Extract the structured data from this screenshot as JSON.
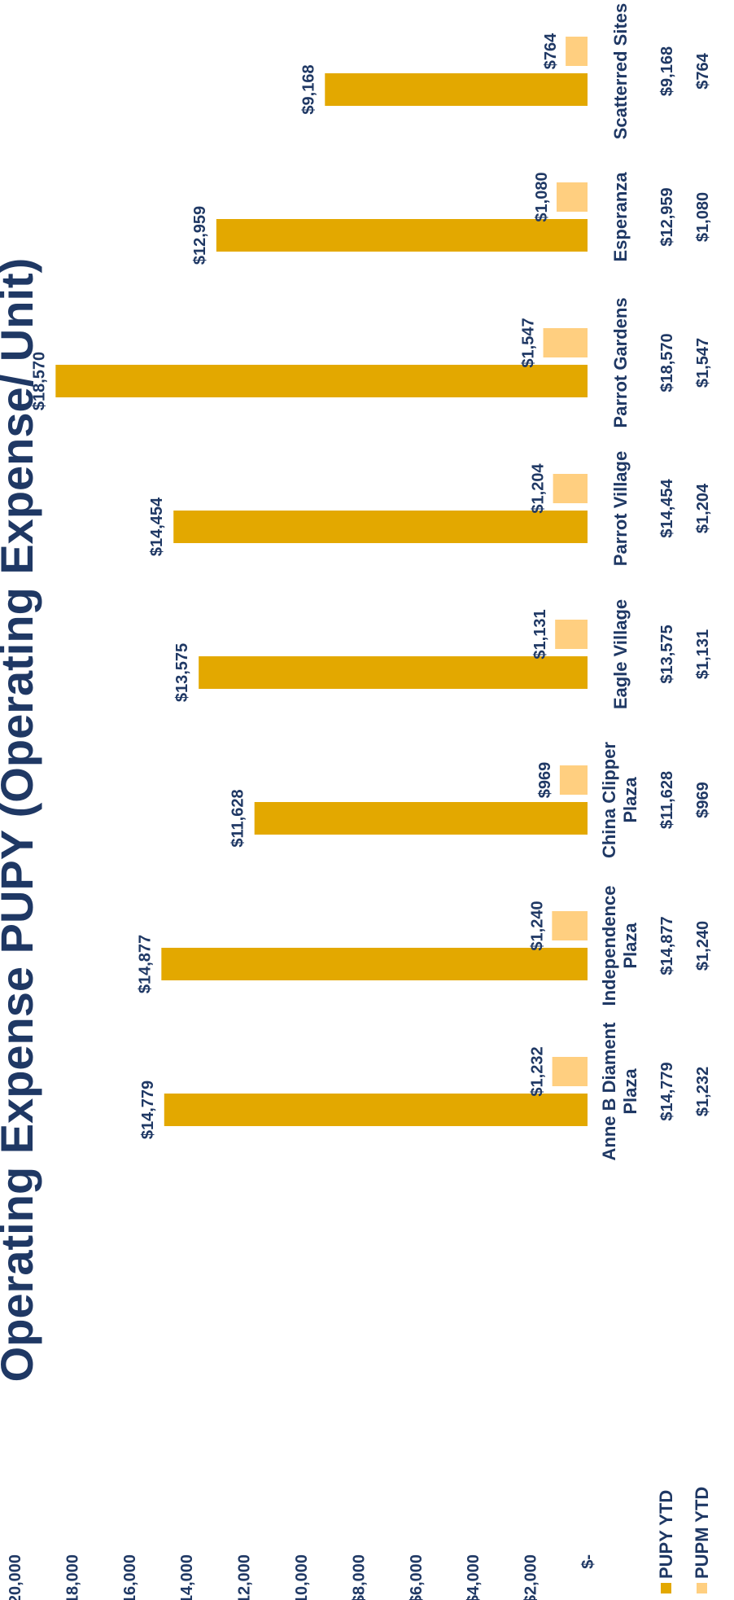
{
  "chart_data": {
    "type": "bar",
    "title": "Operating Expense PUPY (Operating Expense/ Unit)",
    "categories": [
      [
        "Anne B Diament",
        "Plaza"
      ],
      [
        "Independence",
        "Plaza"
      ],
      [
        "China Clipper",
        "Plaza"
      ],
      [
        "Eagle Village"
      ],
      [
        "Parrot Village"
      ],
      [
        "Parrot Gardens"
      ],
      [
        "Esperanza"
      ],
      [
        "Scatterred Sites"
      ]
    ],
    "series": [
      {
        "name": "PUPY YTD",
        "color": "#e3a800",
        "values": [
          14779,
          14877,
          11628,
          13575,
          14454,
          18570,
          12959,
          9168
        ],
        "labels": [
          "$14,779",
          "$14,877",
          "$11,628",
          "$13,575",
          "$14,454",
          "$18,570",
          "$12,959",
          "$9,168"
        ]
      },
      {
        "name": "PUPM YTD",
        "color": "#ffcf80",
        "values": [
          1232,
          1240,
          969,
          1131,
          1204,
          1547,
          1080,
          764
        ],
        "labels": [
          "$1,232",
          "$1,240",
          "$969",
          "$1,131",
          "$1,204",
          "$1,547",
          "$1,080",
          "$764"
        ]
      }
    ],
    "ylim": [
      0,
      20000
    ],
    "yticks": [
      0,
      2000,
      4000,
      6000,
      8000,
      10000,
      12000,
      14000,
      16000,
      18000,
      20000
    ],
    "ytick_labels": [
      "$-",
      "$2,000",
      "$4,000",
      "$6,000",
      "$8,000",
      "$10,000",
      "$12,000",
      "$14,000",
      "$16,000",
      "$18,000",
      "$20,000"
    ],
    "grid": false,
    "legend": "data-table-bottom"
  }
}
